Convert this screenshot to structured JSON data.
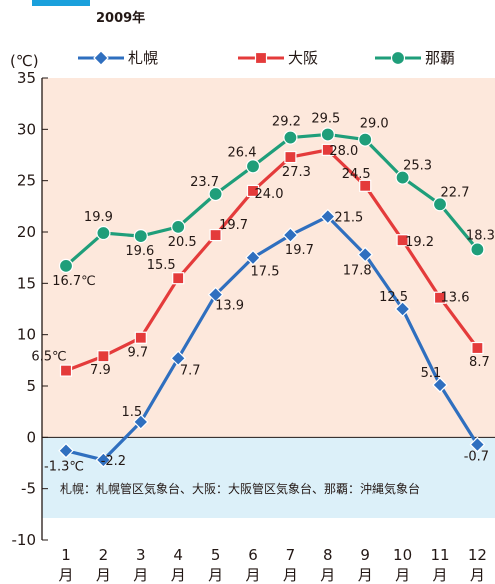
{
  "chart_data": {
    "type": "line",
    "title": "2009年",
    "ylabel": "(℃)",
    "ylim": [
      -10,
      35
    ],
    "yticks": [
      -10,
      -5,
      0,
      5,
      10,
      15,
      20,
      25,
      30,
      35
    ],
    "categories": [
      "1",
      "2",
      "3",
      "4",
      "5",
      "6",
      "7",
      "8",
      "9",
      "10",
      "11",
      "12"
    ],
    "category_suffix": "月",
    "series": [
      {
        "name": "札幌",
        "color": "#2f6fbf",
        "marker": "diamond",
        "values": [
          -1.3,
          -2.2,
          1.5,
          7.7,
          13.9,
          17.5,
          19.7,
          21.5,
          17.8,
          12.5,
          5.1,
          -0.7
        ],
        "labels": [
          "-1.3℃",
          "-2.2",
          "1.5",
          "7.7",
          "13.9",
          "17.5",
          "19.7",
          "21.5",
          "17.8",
          "12.5",
          "5.1",
          "-0.7"
        ]
      },
      {
        "name": "大阪",
        "color": "#e43b3b",
        "marker": "square",
        "values": [
          6.5,
          7.9,
          9.7,
          15.5,
          19.7,
          24.0,
          27.3,
          28.0,
          24.5,
          19.2,
          13.6,
          8.7
        ],
        "labels": [
          "6.5℃",
          "7.9",
          "9.7",
          "15.5",
          "19.7",
          "24.0",
          "27.3",
          "28.0",
          "24.5",
          "19.2",
          "13.6",
          "8.7"
        ]
      },
      {
        "name": "那覇",
        "color": "#1f9e7a",
        "marker": "circle",
        "values": [
          16.7,
          19.9,
          19.6,
          20.5,
          23.7,
          26.4,
          29.2,
          29.5,
          29.0,
          25.3,
          22.7,
          18.3
        ],
        "labels": [
          "16.7℃",
          "19.9",
          "19.6",
          "20.5",
          "23.7",
          "26.4",
          "29.2",
          "29.5",
          "29.0",
          "25.3",
          "22.7",
          "18.3"
        ]
      }
    ],
    "background_colors": {
      "above_zero": "#fde8dc",
      "below_zero": "#dcf0f9"
    },
    "legend_position": "top",
    "grid": false,
    "note": "札幌：札幌管区気象台、大阪：大阪管区気象台、那覇：沖縄気象台"
  }
}
